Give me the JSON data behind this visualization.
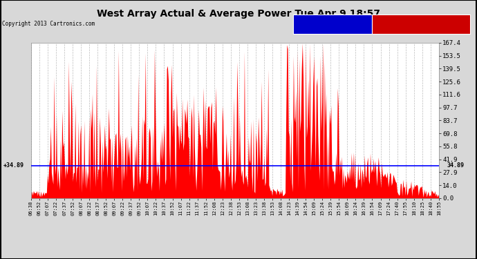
{
  "title": "West Array Actual & Average Power Tue Apr 9 18:57",
  "copyright": "Copyright 2013 Cartronics.com",
  "average_value": 34.89,
  "ymax": 167.4,
  "yticks": [
    0.0,
    14.0,
    27.9,
    41.9,
    55.8,
    69.8,
    83.7,
    97.7,
    111.6,
    125.6,
    139.5,
    153.5,
    167.4
  ],
  "bg_color": "#ffffff",
  "red_color": "#ff0000",
  "avg_line_color": "#0000ff",
  "grid_color": "#cccccc",
  "legend_avg_bg": "#0000cc",
  "legend_west_bg": "#cc0000",
  "xtick_labels": [
    "06:38",
    "06:52",
    "07:07",
    "07:22",
    "07:37",
    "07:52",
    "08:07",
    "08:22",
    "08:37",
    "08:52",
    "09:07",
    "09:22",
    "09:37",
    "09:52",
    "10:07",
    "10:22",
    "10:37",
    "10:52",
    "11:07",
    "11:22",
    "11:37",
    "11:52",
    "12:08",
    "12:23",
    "12:38",
    "12:53",
    "13:08",
    "13:23",
    "13:38",
    "13:53",
    "14:08",
    "14:23",
    "14:39",
    "14:54",
    "15:09",
    "15:24",
    "15:39",
    "15:54",
    "16:09",
    "16:24",
    "16:39",
    "16:54",
    "17:09",
    "17:24",
    "17:40",
    "17:55",
    "18:10",
    "18:25",
    "18:40",
    "18:55"
  ]
}
